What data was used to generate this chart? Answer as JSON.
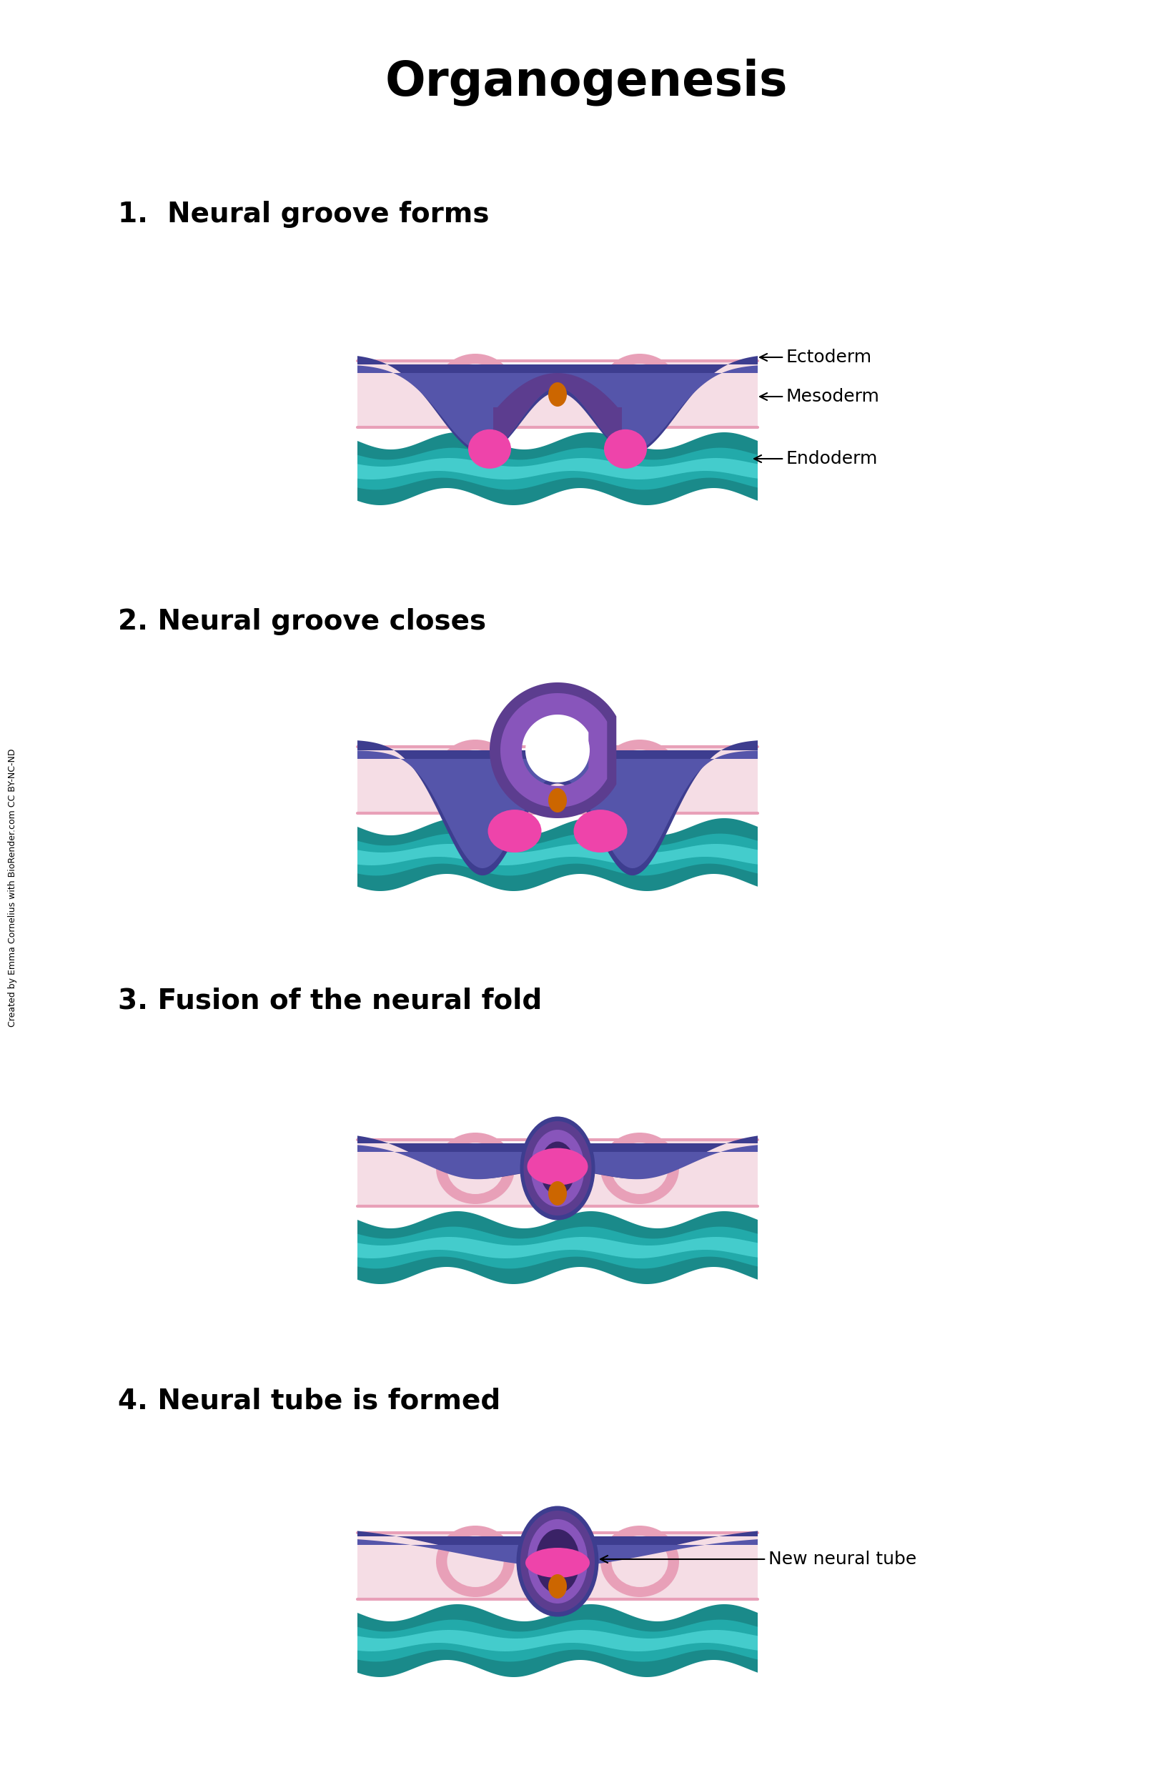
{
  "title": "Organogenesis",
  "title_fontsize": 48,
  "title_fontweight": "bold",
  "bg_color": "#ffffff",
  "labels": [
    "1.  Neural groove forms",
    "2. Neural groove closes",
    "3. Fusion of the neural fold",
    "4. Neural tube is formed"
  ],
  "label_fontsize": 28,
  "label_fontweight": "bold",
  "colors": {
    "ectoderm_dark": "#3d3d8f",
    "ectoderm_mid": "#5555aa",
    "ectoderm_light": "#7777cc",
    "neural_purple_dark": "#5c3d8f",
    "neural_purple_mid": "#8855bb",
    "neural_purple_light": "#aa77cc",
    "neural_fold_pink": "#ee44aa",
    "mesoderm_bg": "#f5dde5",
    "mesoderm_lobe_outer": "#e8a0b8",
    "mesoderm_lobe_inner": "#f5dde5",
    "endoderm_dark": "#1a8a8a",
    "endoderm_mid": "#22aaaa",
    "endoderm_light": "#44cccc",
    "notochord": "#cc6600",
    "white": "#ffffff",
    "neural_tube_darkest": "#3a2266",
    "neural_tube_dark": "#5544aa",
    "neural_tube_mid": "#7766bb",
    "neural_crest_pink": "#cc3399"
  },
  "watermark": "Created by Emma Cornelius with BioRender.com CC BY-NC-ND",
  "watermark_fontsize": 9
}
